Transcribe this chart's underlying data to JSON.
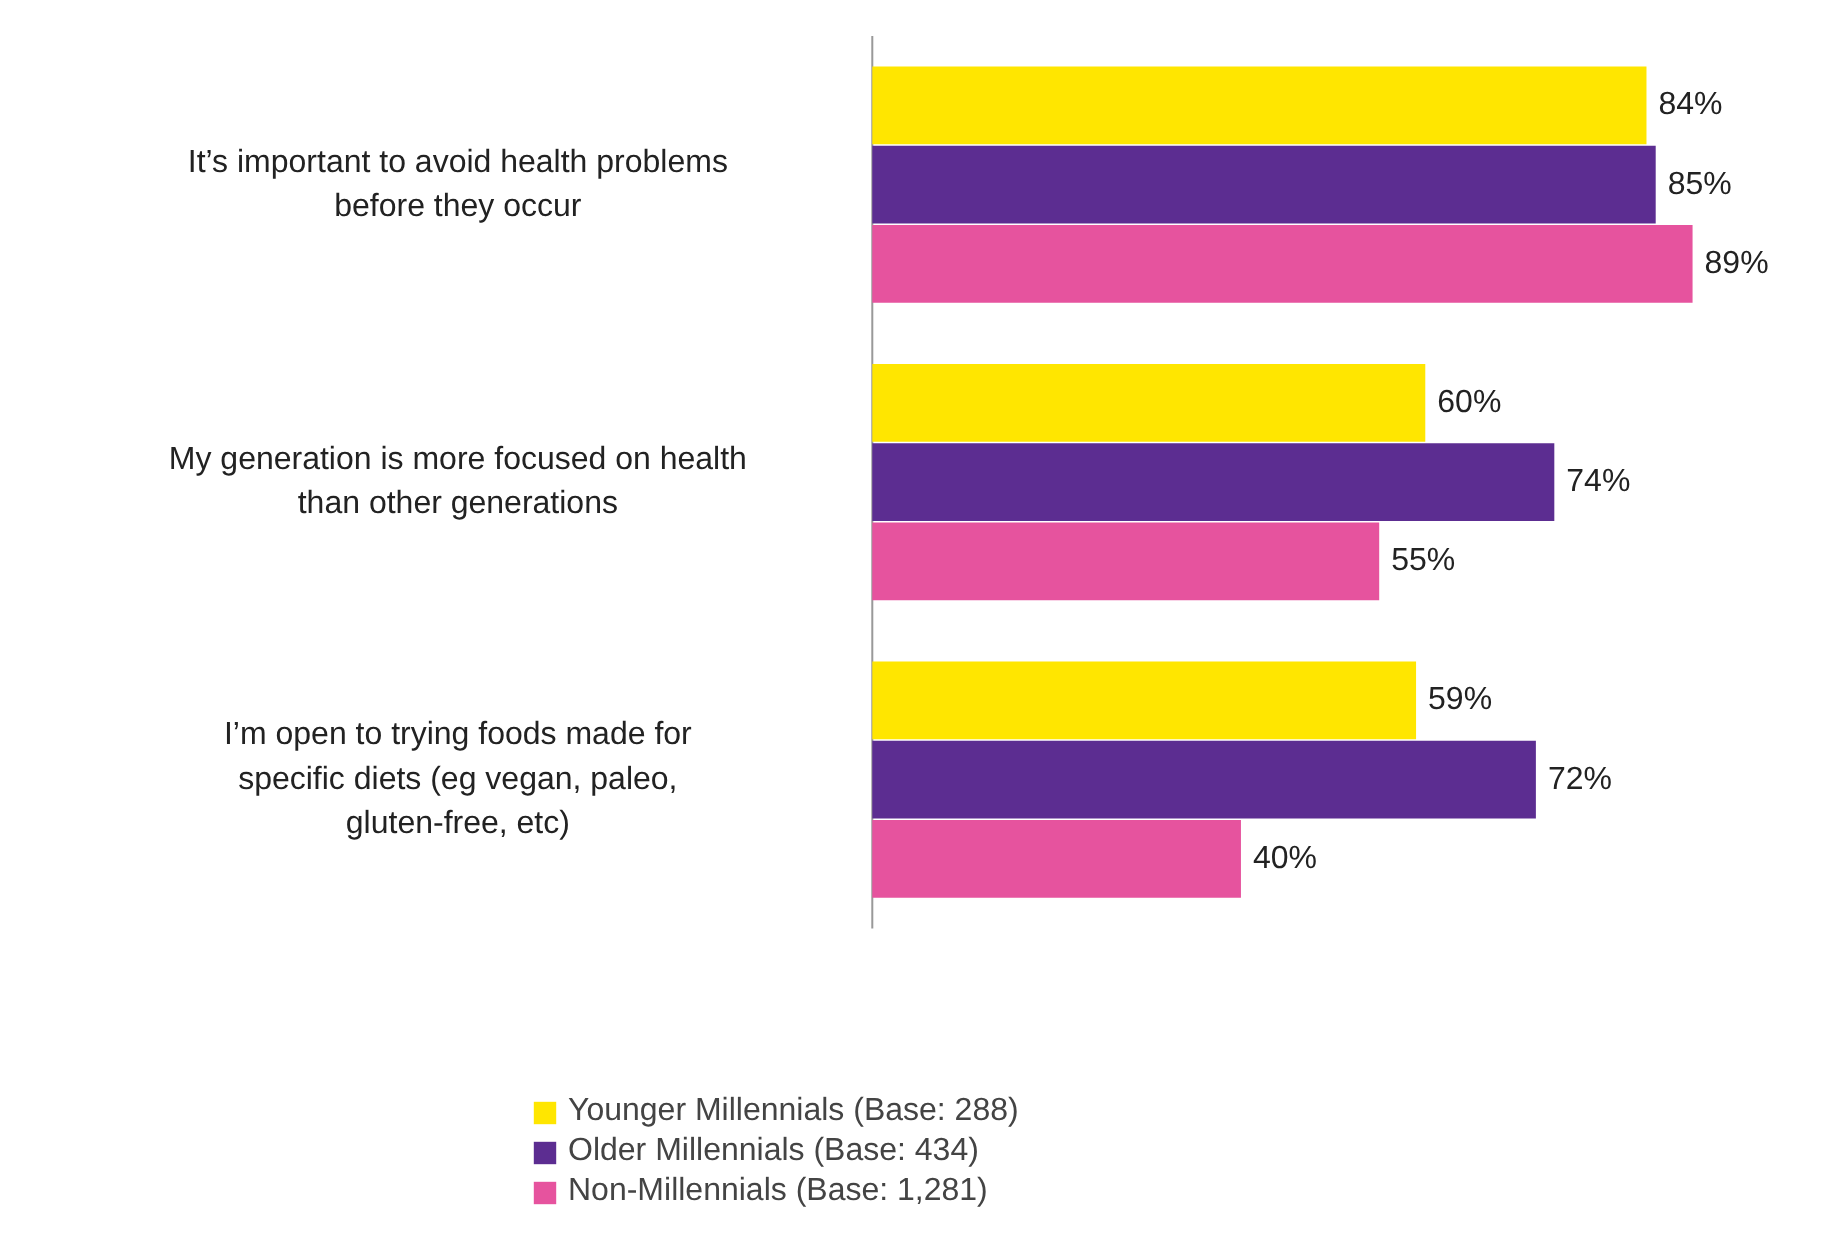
{
  "chart_data": {
    "type": "bar",
    "orientation": "horizontal",
    "categories": [
      "It’s important to avoid health problems before they occur",
      "My generation is more focused on health than other generations",
      "I’m open to trying foods made for specific diets (eg vegan, paleo, gluten-free, etc)"
    ],
    "series": [
      {
        "name": "Younger Millennials (Base: 288)",
        "color": "#ffe600",
        "values": [
          84,
          60,
          59
        ],
        "value_labels": [
          "84%",
          "60%",
          "59%"
        ]
      },
      {
        "name": "Older Millennials (Base: 434)",
        "color": "#5c2d91",
        "values": [
          85,
          74,
          72
        ],
        "value_labels": [
          "85%",
          "74%",
          "72%"
        ]
      },
      {
        "name": "Non-Millennials (Base: 1,281)",
        "color": "#e6539e",
        "values": [
          89,
          55,
          40
        ],
        "value_labels": [
          "89%",
          "55%",
          "40%"
        ]
      }
    ],
    "tick_labels": "y",
    "grid": false,
    "legend": "bottom"
  }
}
